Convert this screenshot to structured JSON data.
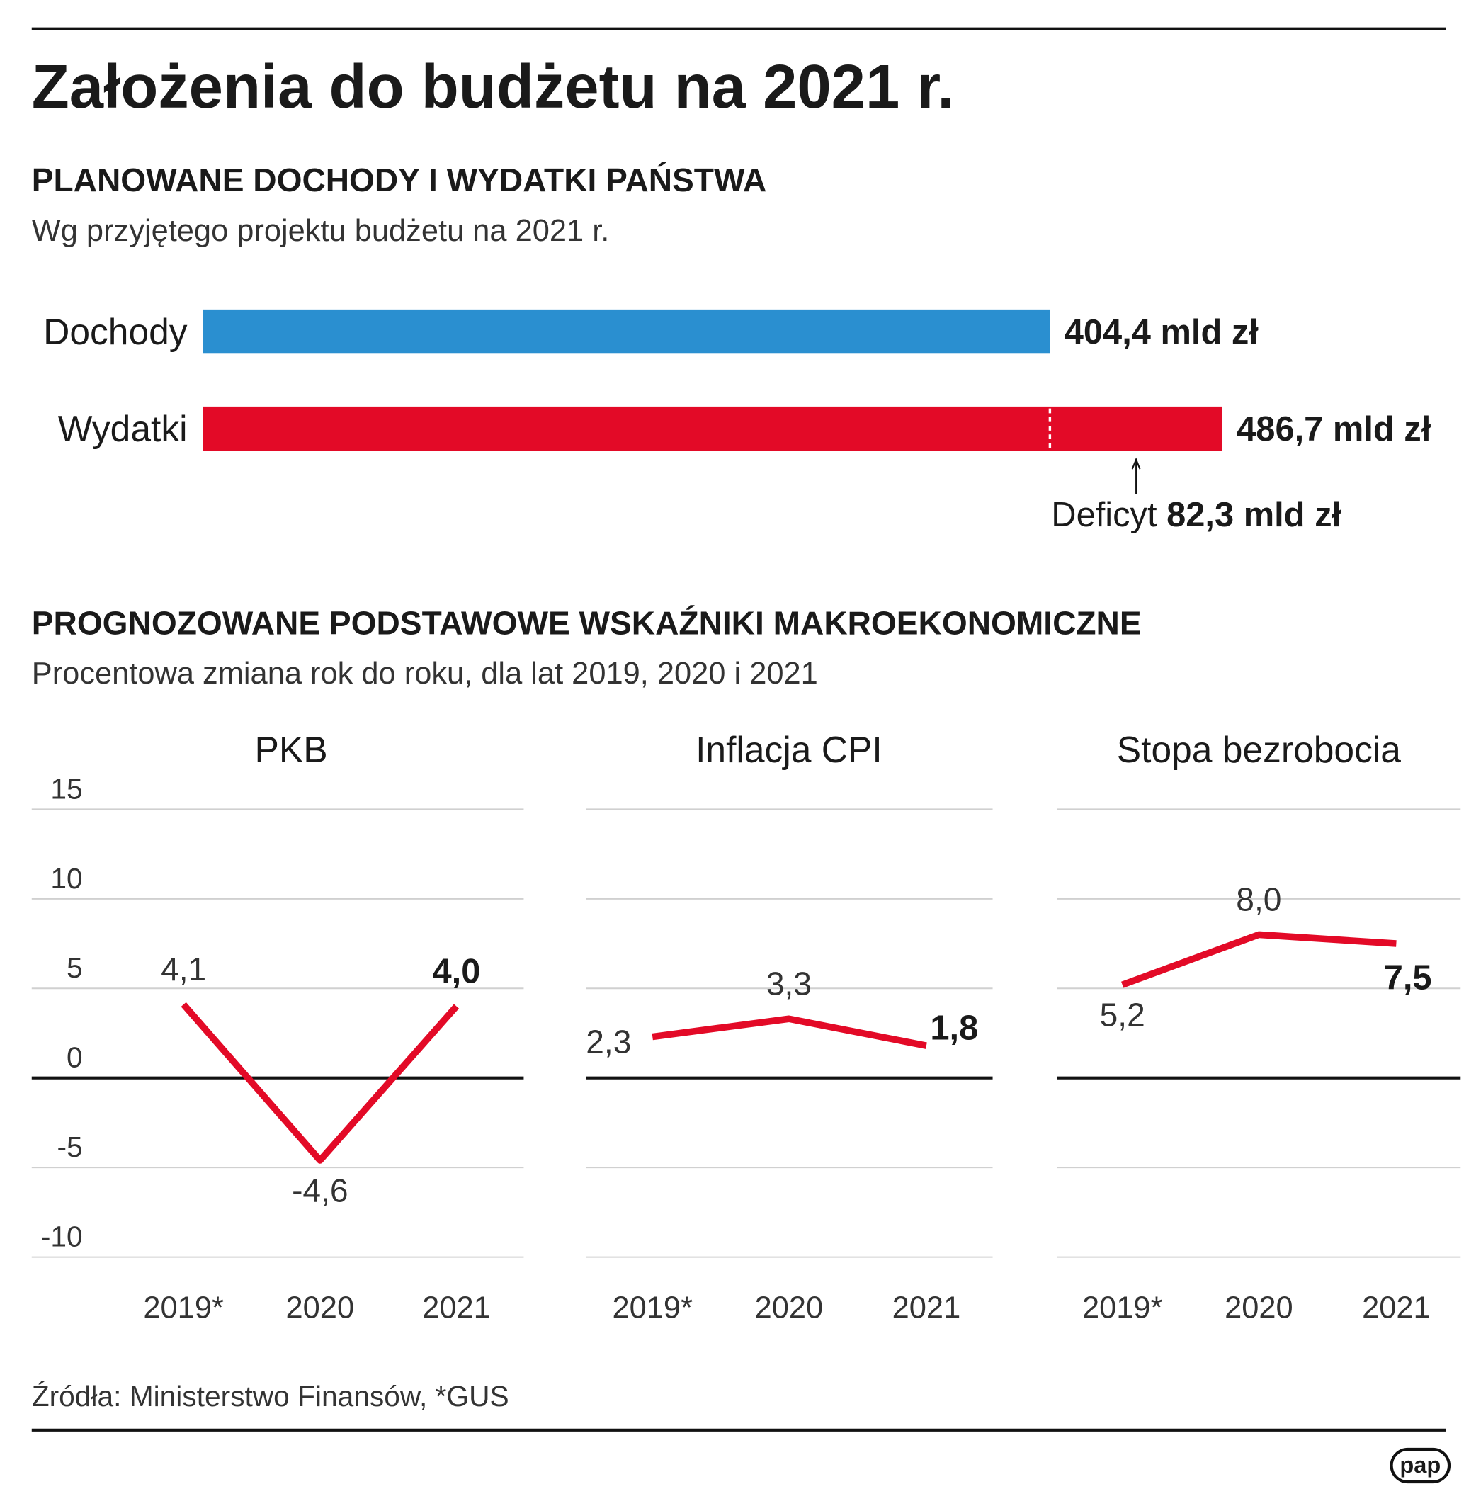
{
  "title": "Założenia do budżetu na 2021 r.",
  "macro": {
    "title": "PROGNOZOWANE PODSTAWOWE WSKAŹNIKI MAKROEKONOMICZNE",
    "subtitle": "Procentowa zmiana rok do roku, dla lat 2019, 2020 i 2021"
  },
  "source": "Źródła: Ministerstwo Finansów, *GUS",
  "logo": "pap",
  "chart_data": [
    {
      "type": "hbar",
      "title": "PLANOWANE DOCHODY I WYDATKI PAŃSTWA",
      "subtitle": "Wg przyjętego projektu budżetu na 2021 r.",
      "categories": [
        "Dochody",
        "Wydatki"
      ],
      "values": [
        404.4,
        486.7
      ],
      "value_labels": [
        "404,4 mld zł",
        "486,7 mld zł"
      ],
      "colors": [
        "#2a8fd0",
        "#e30a27"
      ],
      "deficit": {
        "label": "Deficyt",
        "value": 82.3,
        "value_label": "82,3 mld zł"
      }
    },
    {
      "type": "line",
      "title": "PKB",
      "categories": [
        "2019*",
        "2020",
        "2021"
      ],
      "values": [
        4.1,
        -4.6,
        4.0
      ],
      "value_labels": [
        "4,1",
        "-4,6",
        "4,0"
      ],
      "color": "#e30a27",
      "ylim": [
        -10,
        15
      ],
      "yticks": [
        -10,
        -5,
        0,
        5,
        10,
        15
      ],
      "show_tick_labels": true,
      "bold_last": true
    },
    {
      "type": "line",
      "title": "Inflacja CPI",
      "categories": [
        "2019*",
        "2020",
        "2021"
      ],
      "values": [
        2.3,
        3.3,
        1.8
      ],
      "value_labels": [
        "2,3",
        "3,3",
        "1,8"
      ],
      "color": "#e30a27",
      "ylim": [
        -10,
        15
      ],
      "yticks": [
        -10,
        -5,
        0,
        5,
        10,
        15
      ],
      "show_tick_labels": false,
      "bold_last": true
    },
    {
      "type": "line",
      "title": "Stopa bezrobocia",
      "categories": [
        "2019*",
        "2020",
        "2021"
      ],
      "values": [
        5.2,
        8.0,
        7.5
      ],
      "value_labels": [
        "5,2",
        "8,0",
        "7,5"
      ],
      "color": "#e30a27",
      "ylim": [
        -10,
        15
      ],
      "yticks": [
        -10,
        -5,
        0,
        5,
        10,
        15
      ],
      "show_tick_labels": false,
      "bold_last": true
    }
  ]
}
